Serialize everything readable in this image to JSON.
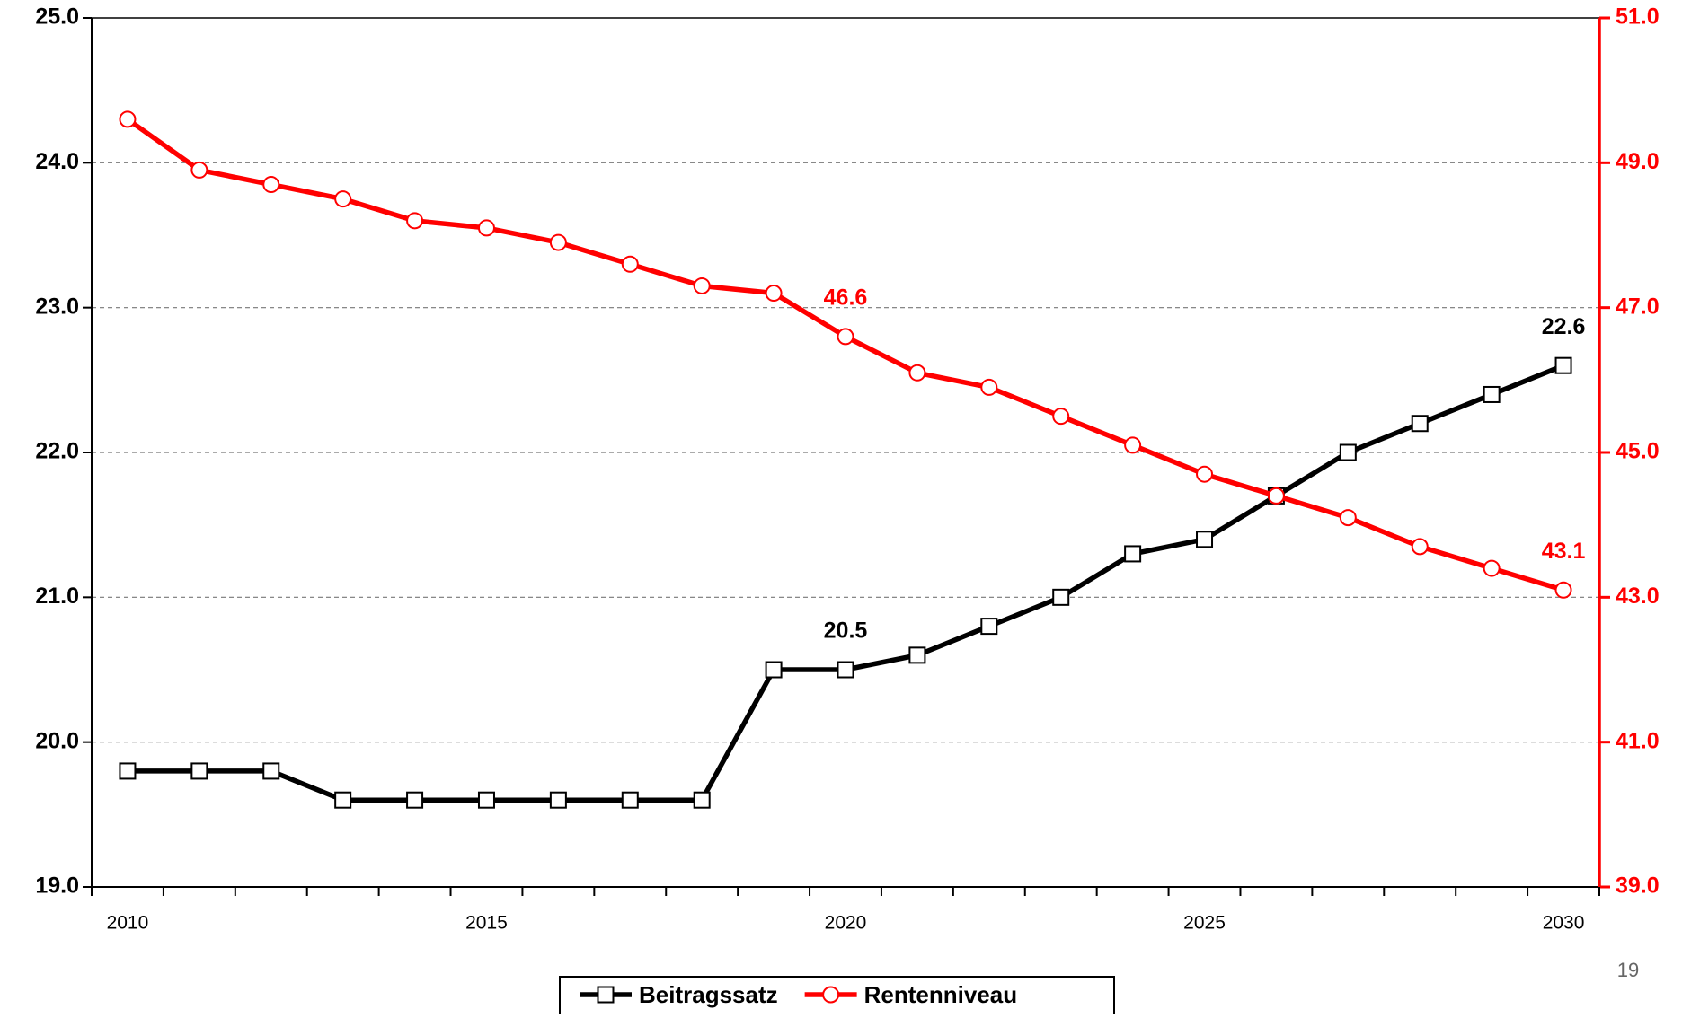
{
  "chart_data": {
    "type": "line",
    "categories": [
      "2010",
      null,
      null,
      null,
      null,
      "2015",
      null,
      null,
      null,
      null,
      "2020",
      null,
      null,
      null,
      null,
      "2025",
      null,
      null,
      null,
      null,
      "2030"
    ],
    "series": [
      {
        "name": "Beitragssatz",
        "color": "#000000",
        "marker": "square",
        "values": [
          19.8,
          19.8,
          19.8,
          19.6,
          19.6,
          19.6,
          19.6,
          19.6,
          19.6,
          20.5,
          20.5,
          20.6,
          20.8,
          21.0,
          21.3,
          21.4,
          21.7,
          22.0,
          22.2,
          22.4,
          22.6
        ],
        "value_labels": [
          null,
          null,
          null,
          null,
          null,
          null,
          null,
          null,
          null,
          null,
          "20.5",
          null,
          null,
          null,
          null,
          null,
          null,
          null,
          null,
          null,
          "22.6"
        ]
      },
      {
        "name": "Rentenniveau",
        "color": "#ff0000",
        "marker": "circle",
        "axis": "y2",
        "values": [
          49.6,
          48.9,
          48.7,
          48.5,
          48.2,
          48.1,
          47.9,
          47.6,
          47.3,
          47.2,
          46.6,
          46.1,
          45.9,
          45.5,
          45.1,
          44.7,
          44.4,
          44.1,
          43.7,
          43.4,
          43.1
        ],
        "value_labels": [
          null,
          null,
          null,
          null,
          null,
          null,
          null,
          null,
          null,
          null,
          "46.6",
          null,
          null,
          null,
          null,
          null,
          null,
          null,
          null,
          null,
          "43.1"
        ]
      }
    ],
    "ylim": [
      19,
      25
    ],
    "yticks": [
      {
        "value": 19,
        "label": "19.0"
      },
      {
        "value": 20,
        "label": "20.0"
      },
      {
        "value": 21,
        "label": "21.0"
      },
      {
        "value": 22,
        "label": "22.0"
      },
      {
        "value": 23,
        "label": "23.0"
      },
      {
        "value": 24,
        "label": "24.0"
      },
      {
        "value": 25,
        "label": "25.0"
      }
    ],
    "y2lim": [
      39,
      51
    ],
    "y2ticks": [
      {
        "value": 39,
        "label": "39.0"
      },
      {
        "value": 41,
        "label": "41.0"
      },
      {
        "value": 43,
        "label": "43.0"
      },
      {
        "value": 45,
        "label": "45.0"
      },
      {
        "value": 47,
        "label": "47.0"
      },
      {
        "value": 49,
        "label": "49.0"
      },
      {
        "value": 51,
        "label": "51.0"
      }
    ],
    "grid": true,
    "legend": "bottom",
    "y2color": "#ff0000"
  },
  "page_number": "19"
}
